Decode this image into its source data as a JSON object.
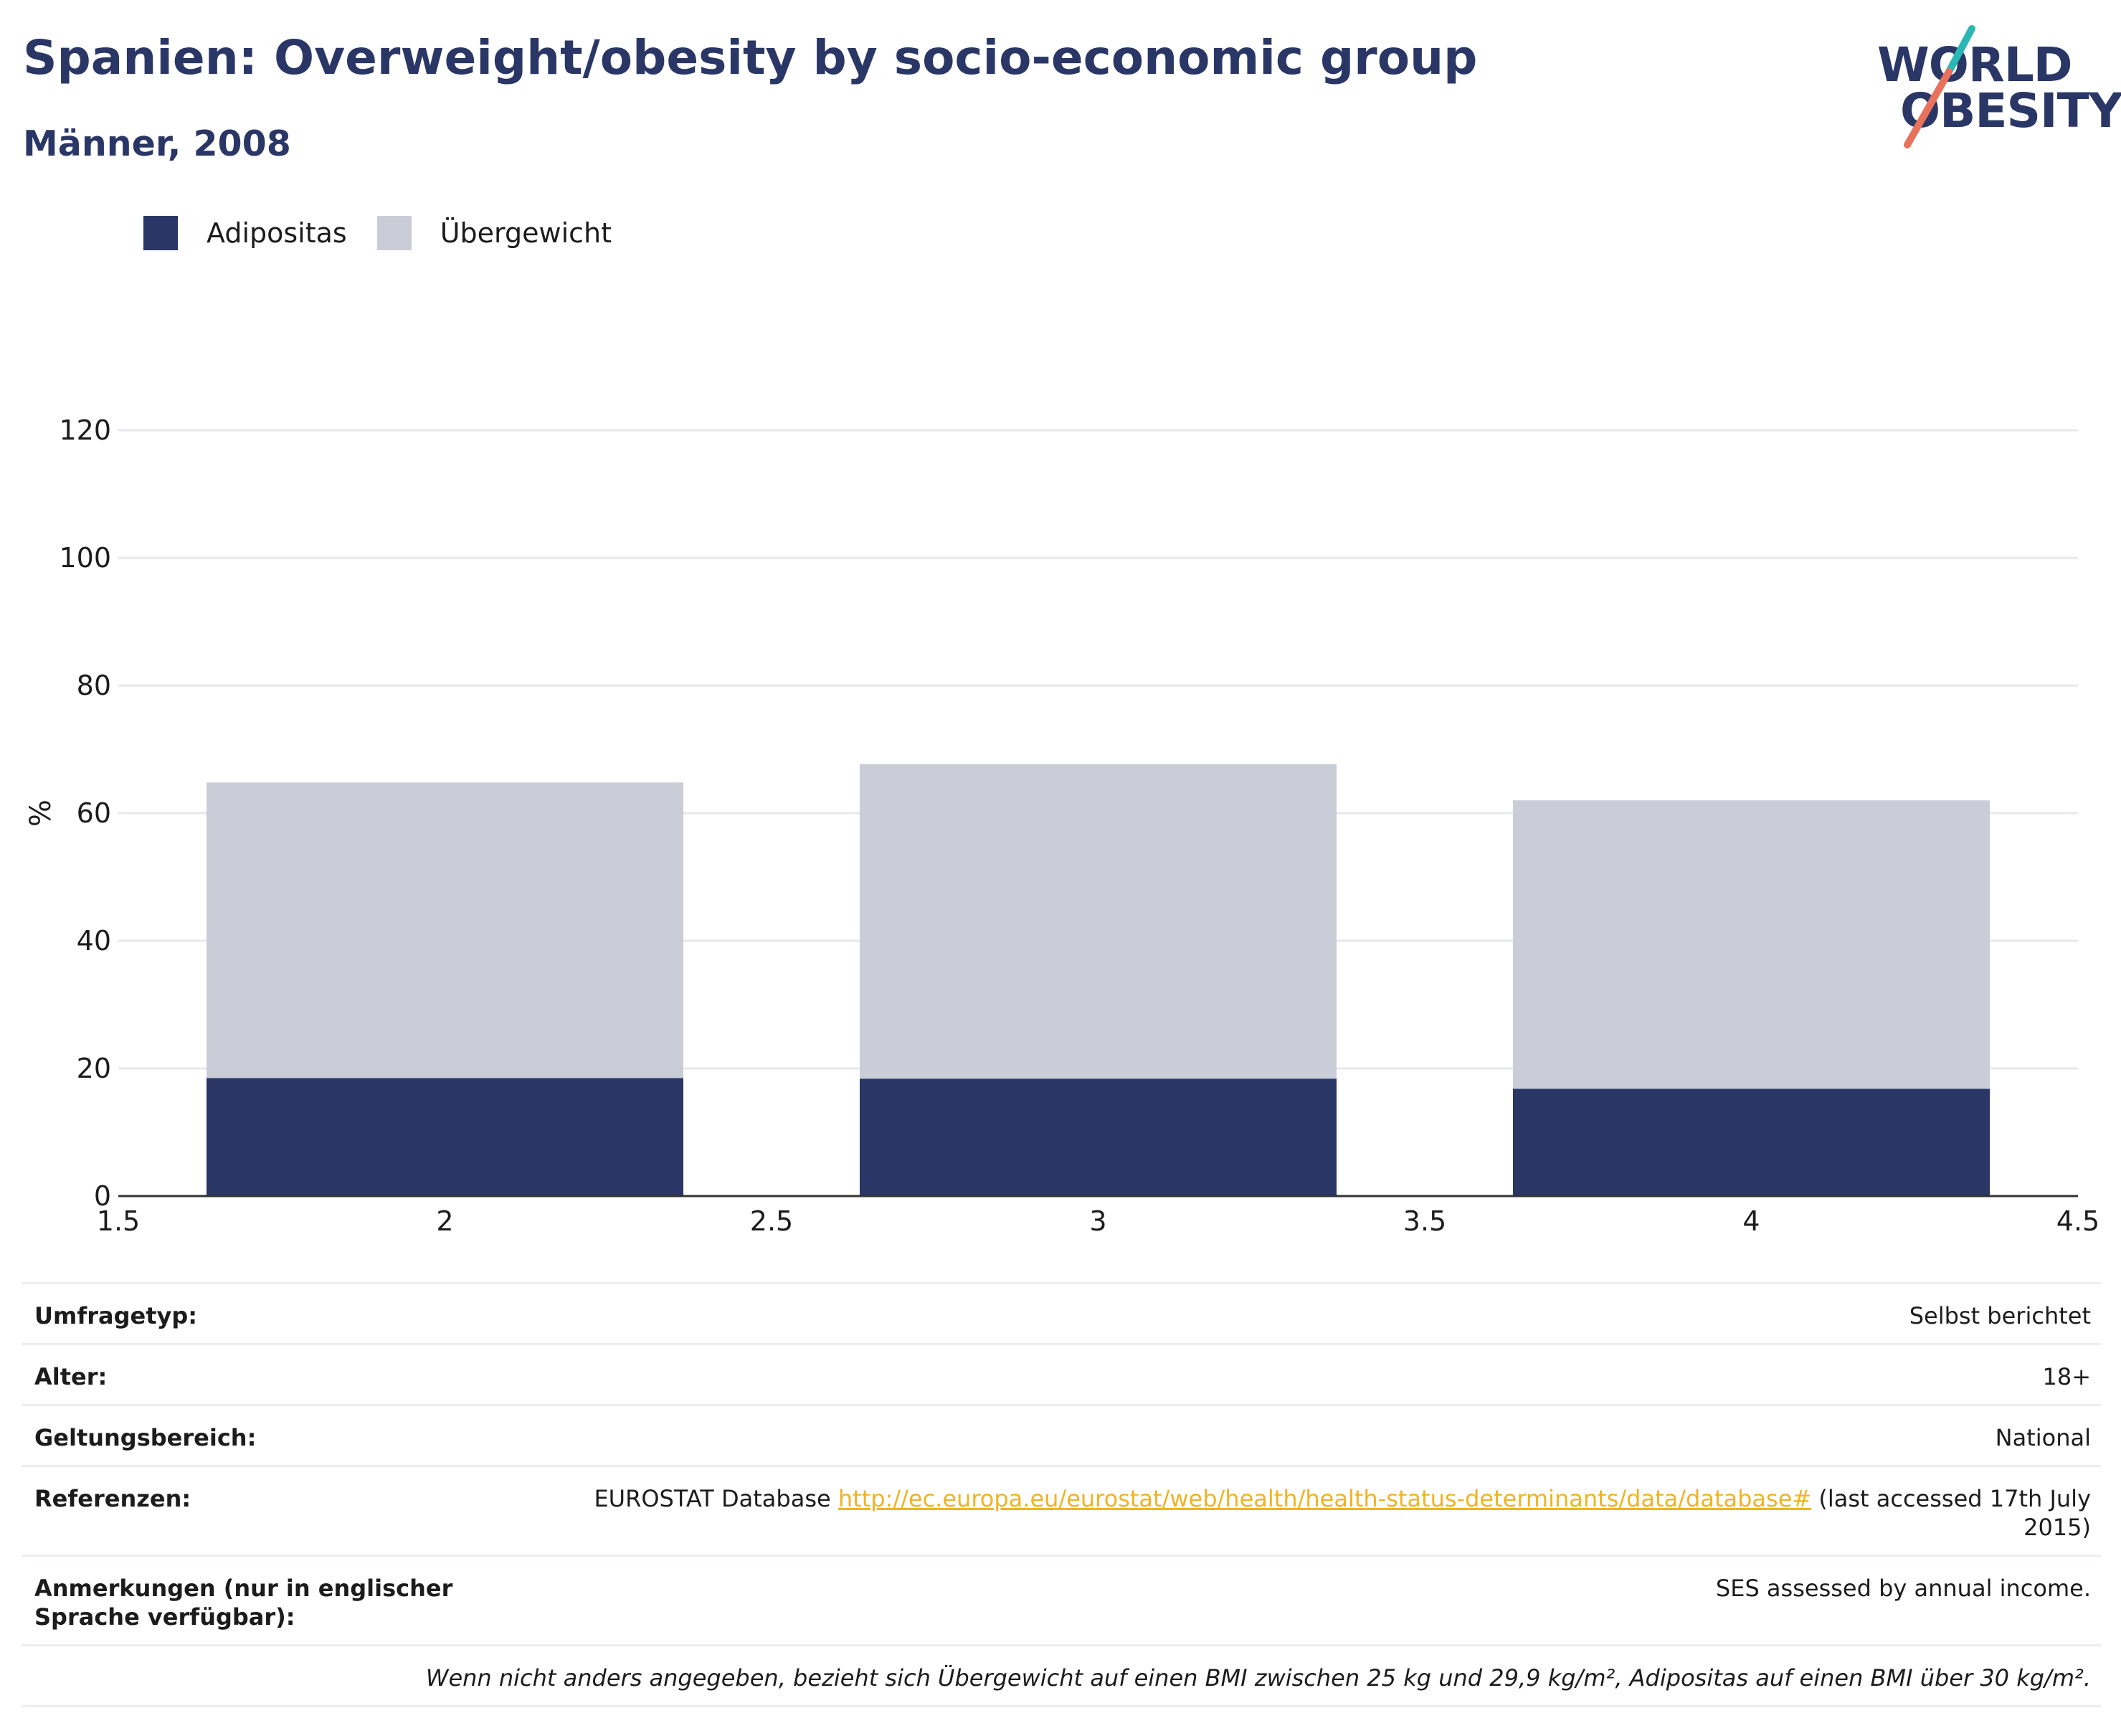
{
  "header": {
    "title": "Spanien: Overweight/obesity by socio-economic group",
    "subtitle": "Männer, 2008"
  },
  "logo": {
    "line1": "WORLD",
    "line2": "OBESITY",
    "accent_teal": "#2bb7b3",
    "accent_coral": "#e8725c"
  },
  "colors": {
    "obesity": "#2a3766",
    "overweight": "#cacdd8",
    "title": "#2a3766",
    "link": "#f0b324",
    "grid": "#e6e8ee",
    "axis": "#333333"
  },
  "legend": [
    {
      "label": "Adipositas",
      "color": "#2a3766"
    },
    {
      "label": "Übergewicht",
      "color": "#cacdd8"
    }
  ],
  "chart_data": {
    "type": "bar",
    "stacked": true,
    "title": "Spanien: Overweight/obesity by socio-economic group",
    "subtitle": "Männer, 2008",
    "xlabel": "",
    "ylabel": "%",
    "x": [
      2,
      3,
      4
    ],
    "xlim": [
      1.5,
      4.5
    ],
    "ylim": [
      0,
      120
    ],
    "xticks": [
      "1.5",
      "2",
      "2.5",
      "3",
      "3.5",
      "4",
      "4.5"
    ],
    "yticks": [
      "0",
      "20",
      "40",
      "60",
      "80",
      "100",
      "120"
    ],
    "grid": true,
    "legend_position": "top-left",
    "series": [
      {
        "name": "Adipositas",
        "color": "#2a3766",
        "values": [
          18.5,
          18.4,
          16.8
        ]
      },
      {
        "name": "Übergewicht",
        "color": "#cacdd8",
        "values": [
          46.3,
          49.3,
          45.2
        ]
      }
    ]
  },
  "info": {
    "rows": [
      {
        "label": "Umfragetyp:",
        "value": "Selbst berichtet"
      },
      {
        "label": "Alter:",
        "value": "18+"
      },
      {
        "label": "Geltungsbereich:",
        "value": "National"
      }
    ],
    "references": {
      "label": "Referenzen:",
      "prefix": "EUROSTAT Database ",
      "link": "http://ec.europa.eu/eurostat/web/health/health-status-determinants/data/database#",
      "suffix": " (last accessed 17th July 2015)"
    },
    "notes": {
      "label": "Anmerkungen (nur in englischer Sprache verfügbar):",
      "value": "SES assessed by annual income."
    },
    "footnote": "Wenn nicht anders angegeben, bezieht sich Übergewicht auf einen BMI zwischen 25 kg und 29,9 kg/m², Adipositas auf einen BMI über 30 kg/m²."
  }
}
